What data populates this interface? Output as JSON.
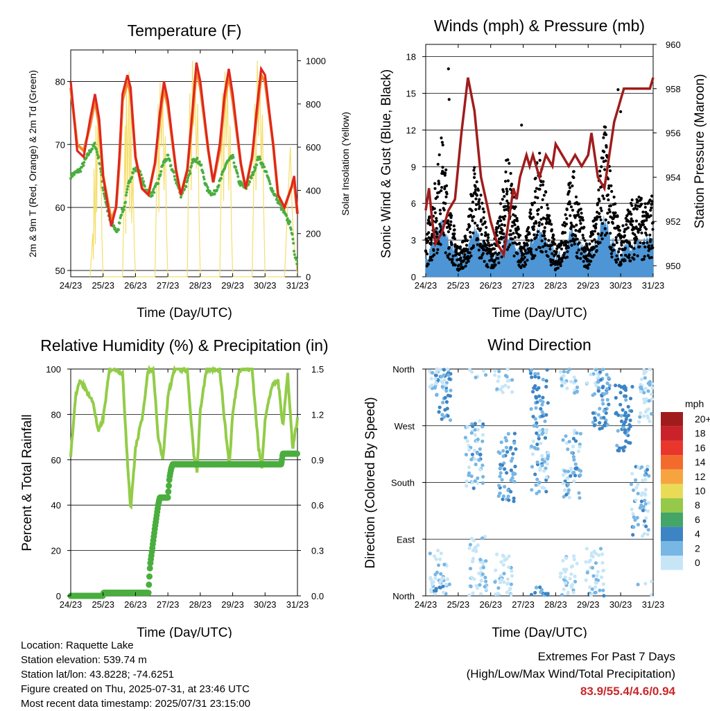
{
  "info": {
    "location": "Location: Raquette Lake",
    "elevation": "Station elevation: 539.74 m",
    "latlon": "Station lat/lon: 43.8228; -74.6251",
    "created": "Figure created on Thu, 2025-07-31, at 23:46 UTC",
    "recent": "Most recent data timestamp: 2025/07/31 23:15:00"
  },
  "extremes": {
    "title": "Extremes For Past 7 Days",
    "subtitle": "(High/Low/Max Wind/Total Precipitation)",
    "values": "83.9/55.4/4.6/0.94"
  },
  "colors": {
    "temp_2m": "#e0261f",
    "temp_9m": "#f28a2a",
    "dewpoint": "#4aae3f",
    "solar": "#f5de6a",
    "wind": "#4d95d4",
    "gust": "#000000",
    "pressure": "#a01c1c",
    "rh": "#92cc48",
    "precip": "#4aae3f"
  },
  "chart_data": [
    {
      "type": "line",
      "title": "Temperature (F)",
      "xlabel": "Time (Day/UTC)",
      "ylabel": "2m & 9m T (Red, Orange) & 2m Td (Green)",
      "y2label": "Solar Insolation (Yellow)",
      "x_ticks": [
        "24/23",
        "25/23",
        "26/23",
        "27/23",
        "28/23",
        "29/23",
        "30/23",
        "31/23"
      ],
      "ylim": [
        49,
        85
      ],
      "y_ticks": [
        50,
        60,
        70,
        80
      ],
      "y2lim": [
        0,
        1050
      ],
      "y2_ticks": [
        0,
        200,
        400,
        600,
        800,
        1000
      ],
      "grid": true,
      "series": [
        {
          "name": "2m T",
          "axis": "left",
          "x": [
            0,
            0.2,
            0.4,
            0.6,
            0.75,
            0.88,
            1.0,
            1.25,
            1.4,
            1.5,
            1.6,
            1.75,
            1.85,
            2.0,
            2.2,
            2.4,
            2.6,
            2.75,
            2.88,
            3.0,
            3.25,
            3.4,
            3.6,
            3.75,
            3.88,
            4.0,
            4.25,
            4.4,
            4.6,
            4.75,
            4.88,
            5.0,
            5.25,
            5.4,
            5.6,
            5.75,
            5.88,
            6.0,
            6.25,
            6.4,
            6.6,
            6.8,
            6.9,
            7.0
          ],
          "values": [
            80,
            69,
            68,
            74,
            78,
            74,
            65,
            57,
            60,
            68,
            78,
            81,
            79,
            68,
            63,
            62,
            67,
            75,
            80,
            77,
            66,
            62,
            66,
            75,
            83,
            80,
            69,
            64,
            70,
            78,
            82,
            78,
            67,
            63,
            68,
            76,
            82,
            81,
            70,
            62,
            60,
            63,
            65,
            59
          ]
        },
        {
          "name": "9m T",
          "axis": "left",
          "x": [
            0,
            0.2,
            0.4,
            0.6,
            0.75,
            0.88,
            1.0,
            1.25,
            1.4,
            1.5,
            1.6,
            1.75,
            1.85,
            2.0,
            2.2,
            2.4,
            2.6,
            2.75,
            2.88,
            3.0,
            3.25,
            3.4,
            3.6,
            3.75,
            3.88,
            4.0,
            4.25,
            4.4,
            4.6,
            4.75,
            4.88,
            5.0,
            5.25,
            5.4,
            5.6,
            5.75,
            5.88,
            6.0,
            6.25,
            6.4,
            6.6,
            6.8,
            6.9,
            7.0
          ],
          "values": [
            79,
            70,
            69,
            73,
            77,
            73,
            65,
            58,
            60,
            67,
            77,
            80,
            78,
            68,
            63,
            62,
            67,
            74,
            79,
            76,
            66,
            62,
            66,
            74,
            82,
            79,
            69,
            64,
            69,
            77,
            81,
            77,
            67,
            63,
            68,
            75,
            81,
            80,
            70,
            62,
            60,
            63,
            64,
            59
          ]
        },
        {
          "name": "2m Td",
          "axis": "left",
          "x": [
            0,
            0.3,
            0.6,
            0.75,
            0.9,
            1.0,
            1.2,
            1.45,
            1.55,
            1.65,
            1.8,
            1.95,
            2.1,
            2.3,
            2.5,
            2.7,
            2.85,
            3.0,
            3.2,
            3.4,
            3.6,
            3.8,
            4.0,
            4.2,
            4.4,
            4.6,
            4.8,
            5.0,
            5.2,
            5.4,
            5.6,
            5.8,
            6.0,
            6.2,
            6.4,
            6.6,
            6.8,
            6.9,
            7.0
          ],
          "values": [
            65,
            66,
            69,
            70,
            67,
            63,
            58,
            56,
            59,
            60,
            64,
            66,
            66,
            63,
            62,
            64,
            67,
            68,
            65,
            62,
            64,
            68,
            67,
            63,
            62,
            64,
            67,
            68,
            64,
            63,
            65,
            68,
            66,
            63,
            61,
            59,
            57,
            53,
            51
          ]
        },
        {
          "name": "Solar",
          "axis": "right",
          "x": [
            0.6,
            0.68,
            0.7,
            0.72,
            0.76,
            0.78,
            0.8,
            0.84,
            0.86,
            0.88,
            0.92,
            0.94,
            0.96,
            1.0,
            1.6,
            1.64,
            1.68,
            1.7,
            1.72,
            1.76,
            1.8,
            1.82,
            1.86,
            1.88,
            1.92,
            1.96,
            2.0,
            2.6,
            2.65,
            2.7,
            2.72,
            2.76,
            2.8,
            2.84,
            2.88,
            2.92,
            2.96,
            3.0,
            3.6,
            3.64,
            3.68,
            3.72,
            3.76,
            3.8,
            3.84,
            3.88,
            3.92,
            3.96,
            4.0,
            4.6,
            4.64,
            4.68,
            4.72,
            4.76,
            4.8,
            4.84,
            4.88,
            4.92,
            4.96,
            5.0,
            5.6,
            5.64,
            5.68,
            5.72,
            5.76,
            5.8,
            5.84,
            5.88,
            5.92,
            5.96,
            6.0,
            6.6,
            6.66,
            6.72,
            6.78,
            6.84,
            6.9,
            7.0
          ],
          "values": [
            0,
            200,
            80,
            500,
            150,
            700,
            300,
            800,
            550,
            750,
            400,
            600,
            200,
            0,
            0,
            300,
            700,
            200,
            900,
            400,
            950,
            300,
            800,
            250,
            500,
            150,
            0,
            0,
            400,
            800,
            300,
            900,
            600,
            850,
            400,
            650,
            200,
            0,
            0,
            500,
            850,
            400,
            1000,
            700,
            950,
            500,
            800,
            300,
            0,
            0,
            400,
            850,
            350,
            950,
            600,
            900,
            400,
            700,
            250,
            0,
            0,
            350,
            800,
            400,
            1000,
            650,
            950,
            500,
            750,
            300,
            0,
            0,
            200,
            400,
            600,
            300,
            150,
            0
          ]
        }
      ]
    },
    {
      "type": "scatter",
      "title": "Winds (mph) & Pressure (mb)",
      "xlabel": "Time (Day/UTC)",
      "ylabel": "Sonic Wind & Gust (Blue, Black)",
      "y2label": "Station Pressure (Maroon)",
      "x_ticks": [
        "24/23",
        "25/23",
        "26/23",
        "27/23",
        "28/23",
        "29/23",
        "30/23",
        "31/23"
      ],
      "ylim": [
        0,
        19
      ],
      "y_ticks": [
        0,
        3,
        6,
        9,
        12,
        15,
        18
      ],
      "y2lim": [
        949.5,
        960.0
      ],
      "y2_ticks": [
        950,
        952,
        954,
        956,
        958,
        960
      ],
      "grid": true,
      "series": [
        {
          "name": "Pressure",
          "type": "line",
          "axis": "right",
          "x": [
            0,
            0.1,
            0.2,
            0.3,
            0.5,
            0.7,
            0.9,
            1.1,
            1.3,
            1.5,
            1.6,
            1.7,
            1.85,
            2.0,
            2.2,
            2.4,
            2.6,
            2.7,
            2.8,
            2.9,
            3.0,
            3.1,
            3.2,
            3.3,
            3.5,
            3.7,
            3.9,
            4.0,
            4.2,
            4.4,
            4.6,
            4.8,
            5.0,
            5.1,
            5.2,
            5.3,
            5.5,
            5.7,
            5.8,
            5.9,
            6.0,
            6.1,
            6.2,
            6.4,
            6.6,
            6.8,
            6.9,
            7.0
          ],
          "values": [
            952.5,
            953.5,
            952.0,
            951.0,
            951.5,
            952.5,
            953.0,
            956.0,
            958.5,
            957.0,
            955.5,
            954.0,
            953.0,
            952.0,
            951.0,
            950.5,
            952.5,
            953.5,
            953.0,
            954.0,
            954.5,
            955.0,
            954.5,
            955.0,
            954.0,
            955.0,
            954.5,
            955.5,
            955.0,
            954.5,
            955.0,
            954.5,
            955.0,
            956.0,
            955.0,
            954.0,
            953.5,
            955.5,
            956.5,
            957.0,
            957.5,
            958.0,
            958.0,
            958.0,
            958.0,
            958.0,
            958.0,
            958.5
          ]
        },
        {
          "name": "Gust",
          "type": "band",
          "axis": "left",
          "x": [
            0,
            0.25,
            0.5,
            0.75,
            1.0,
            1.25,
            1.5,
            1.75,
            2.0,
            2.25,
            2.5,
            2.75,
            3.0,
            3.25,
            3.5,
            3.75,
            4.0,
            4.25,
            4.5,
            4.75,
            5.0,
            5.25,
            5.5,
            5.75,
            6.0,
            6.25,
            6.5,
            6.75,
            7.0
          ],
          "values": [
            3,
            6,
            10,
            5,
            2,
            3,
            8,
            5,
            2,
            4,
            9,
            5,
            2,
            5,
            9,
            5,
            2,
            4,
            8,
            5,
            2,
            5,
            11,
            6,
            3,
            5,
            6,
            5,
            6
          ]
        },
        {
          "name": "Wind",
          "type": "band",
          "axis": "left",
          "x": [
            0,
            0.25,
            0.5,
            0.75,
            1.0,
            1.25,
            1.5,
            1.75,
            2.0,
            2.25,
            2.5,
            2.75,
            3.0,
            3.25,
            3.5,
            3.75,
            4.0,
            4.25,
            4.5,
            4.75,
            5.0,
            5.25,
            5.5,
            5.75,
            6.0,
            6.25,
            6.5,
            6.75,
            7.0
          ],
          "values": [
            1,
            2,
            4,
            2,
            1,
            1,
            3,
            2,
            1,
            1,
            3,
            2,
            1,
            2,
            3,
            2,
            1,
            1,
            3,
            2,
            1,
            2,
            4,
            2,
            1,
            2,
            2,
            2,
            2
          ]
        }
      ]
    },
    {
      "type": "line",
      "title": "Relative Humidity (%) & Precipitation (in)",
      "xlabel": "Time (Day/UTC)",
      "ylabel": "Percent & Total Rainfall",
      "x_ticks": [
        "24/23",
        "25/23",
        "26/23",
        "27/23",
        "28/23",
        "29/23",
        "30/23",
        "31/23"
      ],
      "ylim": [
        0,
        100
      ],
      "y_ticks": [
        0,
        20,
        40,
        60,
        80,
        100
      ],
      "y2lim": [
        0,
        1.5
      ],
      "y2_ticks": [
        "0.0",
        "0.3",
        "0.6",
        "0.9",
        "1.2",
        "1.5"
      ],
      "grid": true,
      "series": [
        {
          "name": "RH",
          "axis": "left",
          "x": [
            0,
            0.15,
            0.3,
            0.5,
            0.7,
            0.85,
            1.0,
            1.2,
            1.4,
            1.6,
            1.75,
            1.85,
            2.0,
            2.2,
            2.4,
            2.55,
            2.7,
            2.85,
            3.0,
            3.2,
            3.4,
            3.6,
            3.8,
            3.9,
            4.0,
            4.2,
            4.4,
            4.6,
            4.8,
            4.9,
            5.0,
            5.2,
            5.4,
            5.6,
            5.8,
            5.9,
            6.0,
            6.2,
            6.4,
            6.55,
            6.7,
            6.85,
            7.0
          ],
          "values": [
            62,
            88,
            95,
            90,
            85,
            72,
            78,
            100,
            100,
            98,
            60,
            38,
            65,
            78,
            100,
            100,
            70,
            60,
            88,
            100,
            100,
            99,
            62,
            55,
            82,
            100,
            100,
            100,
            70,
            58,
            80,
            100,
            100,
            100,
            65,
            57,
            78,
            92,
            95,
            75,
            98,
            65,
            78
          ]
        },
        {
          "name": "Precip",
          "axis": "right",
          "x": [
            0,
            1.0,
            1.01,
            2.4,
            2.45,
            2.6,
            2.7,
            2.75,
            2.8,
            3.0,
            3.05,
            3.1,
            3.15,
            6.5,
            6.55,
            7.0
          ],
          "values": [
            0.0,
            0.0,
            0.02,
            0.02,
            0.2,
            0.45,
            0.6,
            0.65,
            0.65,
            0.65,
            0.78,
            0.84,
            0.87,
            0.87,
            0.94,
            0.94
          ]
        }
      ]
    },
    {
      "type": "scatter",
      "title": "Wind Direction",
      "xlabel": "Time (Day/UTC)",
      "ylabel": "Direction (Colored By Speed)",
      "x_ticks": [
        "24/23",
        "25/23",
        "26/23",
        "27/23",
        "28/23",
        "29/23",
        "30/23",
        "31/23"
      ],
      "y_ticks": [
        "North",
        "East",
        "South",
        "West",
        "North"
      ],
      "grid": true,
      "legend": {
        "title": "mph",
        "labels": [
          "20+",
          "18",
          "16",
          "14",
          "12",
          "10",
          "8",
          "6",
          "4",
          "2",
          "0"
        ],
        "colors": [
          "#a11b1d",
          "#c9222a",
          "#e8362d",
          "#f26a2c",
          "#f7a440",
          "#eadb57",
          "#96c849",
          "#43a567",
          "#3d84c4",
          "#78b6e4",
          "#c6e6f8"
        ],
        "placement": "right"
      },
      "clusters": [
        {
          "x": 0.5,
          "dir": 330,
          "speed": 3
        },
        {
          "x": 0.4,
          "dir": 20,
          "speed": 1
        },
        {
          "x": 1.5,
          "dir": 225,
          "speed": 2
        },
        {
          "x": 1.6,
          "dir": 40,
          "speed": 1
        },
        {
          "x": 2.5,
          "dir": 205,
          "speed": 3
        },
        {
          "x": 2.4,
          "dir": 15,
          "speed": 1
        },
        {
          "x": 3.5,
          "dir": 320,
          "speed": 3
        },
        {
          "x": 3.5,
          "dir": 215,
          "speed": 2
        },
        {
          "x": 4.4,
          "dir": 15,
          "speed": 1
        },
        {
          "x": 4.5,
          "dir": 210,
          "speed": 2
        },
        {
          "x": 5.2,
          "dir": 20,
          "speed": 1
        },
        {
          "x": 5.4,
          "dir": 320,
          "speed": 3
        },
        {
          "x": 6.1,
          "dir": 280,
          "speed": 4
        },
        {
          "x": 6.6,
          "dir": 150,
          "speed": 2
        },
        {
          "x": 6.8,
          "dir": 330,
          "speed": 1
        }
      ]
    }
  ]
}
